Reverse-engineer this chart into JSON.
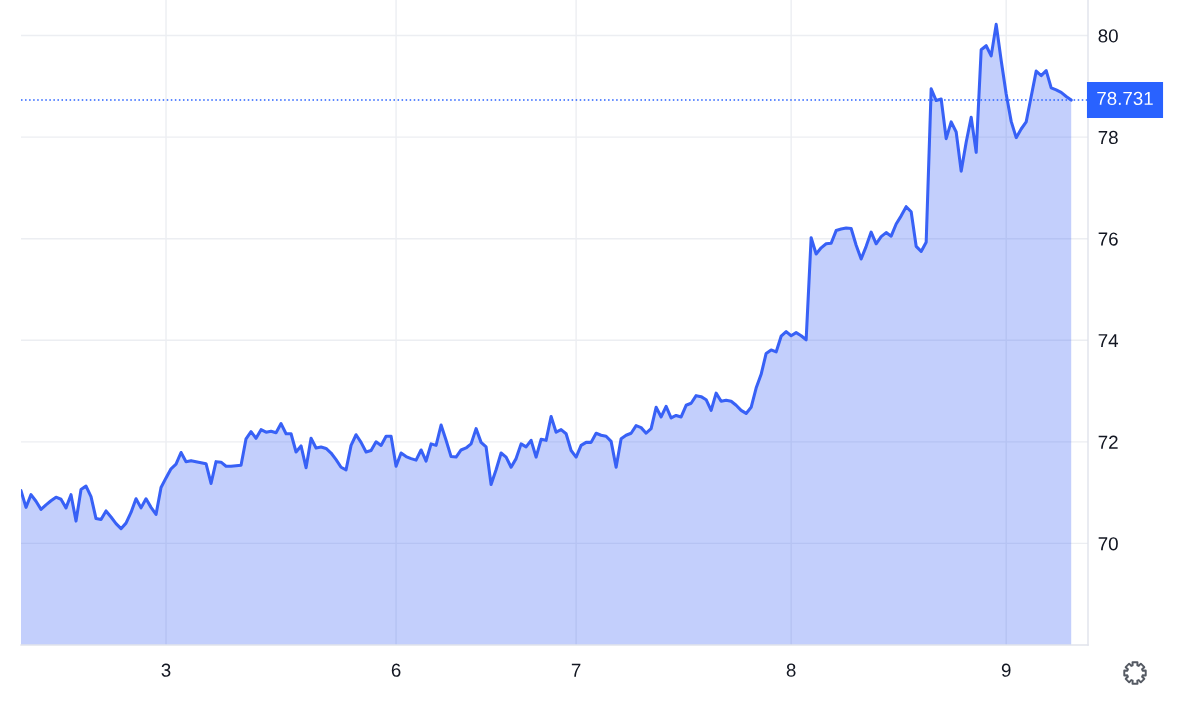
{
  "chart_data": {
    "type": "area",
    "categories": [
      null,
      null,
      null,
      null,
      null,
      null,
      null,
      null,
      null,
      null,
      null,
      null,
      null,
      null,
      null,
      null,
      null,
      null,
      null,
      null,
      null,
      null,
      null,
      null,
      null,
      null,
      null,
      null,
      null,
      "3",
      null,
      null,
      null,
      null,
      null,
      null,
      null,
      null,
      null,
      null,
      null,
      null,
      null,
      null,
      null,
      null,
      null,
      null,
      null,
      null,
      null,
      null,
      null,
      null,
      null,
      null,
      null,
      null,
      null,
      null,
      null,
      null,
      null,
      null,
      null,
      null,
      null,
      null,
      null,
      null,
      null,
      null,
      null,
      null,
      null,
      "6",
      null,
      null,
      null,
      null,
      null,
      null,
      null,
      null,
      null,
      null,
      null,
      null,
      null,
      null,
      null,
      null,
      null,
      null,
      null,
      null,
      null,
      null,
      null,
      null,
      null,
      null,
      null,
      null,
      null,
      null,
      null,
      null,
      null,
      null,
      null,
      "7",
      null,
      null,
      null,
      null,
      null,
      null,
      null,
      null,
      null,
      null,
      null,
      null,
      null,
      null,
      null,
      null,
      null,
      null,
      null,
      null,
      null,
      null,
      null,
      null,
      null,
      null,
      null,
      null,
      null,
      null,
      null,
      null,
      null,
      null,
      null,
      null,
      null,
      null,
      null,
      null,
      null,
      null,
      "8",
      null,
      null,
      null,
      null,
      null,
      null,
      null,
      null,
      null,
      null,
      null,
      null,
      null,
      null,
      null,
      null,
      null,
      null,
      null,
      null,
      null,
      null,
      null,
      null,
      null,
      null,
      null,
      null,
      null,
      null,
      null,
      null,
      null,
      null,
      null,
      null,
      null,
      null,
      null,
      null,
      null,
      null,
      "9",
      null,
      null,
      null,
      null,
      null,
      null,
      null,
      null,
      null,
      null,
      null,
      null,
      null
    ],
    "series": [
      {
        "color": "#3861f6",
        "values": [
          71.04,
          70.71,
          70.96,
          70.83,
          70.67,
          70.76,
          70.84,
          70.91,
          70.87,
          70.7,
          70.96,
          70.44,
          71.06,
          71.13,
          70.92,
          70.49,
          70.47,
          70.64,
          70.52,
          70.39,
          70.29,
          70.4,
          70.61,
          70.88,
          70.7,
          70.88,
          70.71,
          70.57,
          71.1,
          71.29,
          71.47,
          71.56,
          71.79,
          71.61,
          71.63,
          71.61,
          71.59,
          71.57,
          71.18,
          71.61,
          71.6,
          71.52,
          71.52,
          71.53,
          71.54,
          72.06,
          72.2,
          72.07,
          72.24,
          72.19,
          72.21,
          72.18,
          72.36,
          72.16,
          72.16,
          71.8,
          71.92,
          71.49,
          72.07,
          71.88,
          71.9,
          71.87,
          71.78,
          71.65,
          71.5,
          71.45,
          71.93,
          72.14,
          71.99,
          71.8,
          71.83,
          72.0,
          71.93,
          72.11,
          72.11,
          71.52,
          71.78,
          71.71,
          71.67,
          71.64,
          71.84,
          71.62,
          71.96,
          71.93,
          72.33,
          72.03,
          71.71,
          71.7,
          71.84,
          71.88,
          71.96,
          72.26,
          71.99,
          71.9,
          71.16,
          71.45,
          71.78,
          71.7,
          71.5,
          71.67,
          71.96,
          71.9,
          72.03,
          71.7,
          72.05,
          72.03,
          72.5,
          72.19,
          72.24,
          72.16,
          71.83,
          71.7,
          71.93,
          71.99,
          71.99,
          72.17,
          72.13,
          72.11,
          72.01,
          71.5,
          72.06,
          72.13,
          72.17,
          72.32,
          72.28,
          72.17,
          72.26,
          72.68,
          72.49,
          72.7,
          72.47,
          72.52,
          72.49,
          72.72,
          72.76,
          72.91,
          72.89,
          72.83,
          72.62,
          72.96,
          72.8,
          72.82,
          72.8,
          72.72,
          72.62,
          72.56,
          72.68,
          73.06,
          73.33,
          73.74,
          73.81,
          73.77,
          74.08,
          74.17,
          74.09,
          74.15,
          74.09,
          74.01,
          76.02,
          75.7,
          75.82,
          75.9,
          75.91,
          76.16,
          76.19,
          76.21,
          76.2,
          75.87,
          75.6,
          75.85,
          76.13,
          75.9,
          76.04,
          76.12,
          76.05,
          76.29,
          76.45,
          76.63,
          76.53,
          75.85,
          75.75,
          75.93,
          78.95,
          78.72,
          78.75,
          77.97,
          78.3,
          78.1,
          77.33,
          77.9,
          78.39,
          77.7,
          79.72,
          79.8,
          79.6,
          80.22,
          79.51,
          78.85,
          78.31,
          77.99,
          78.16,
          78.3,
          78.8,
          79.3,
          79.21,
          79.31,
          78.97,
          78.93,
          78.88,
          78.8,
          78.73
        ]
      }
    ],
    "ylim": [
      68,
      80.7
    ],
    "yticks": [
      70,
      72,
      74,
      76,
      78,
      80
    ],
    "grid": true,
    "ref_lines": [
      {
        "axis": "y",
        "value": 78.731,
        "label": "78.731",
        "color": "#2962ff",
        "line_style": "dotted"
      }
    ]
  }
}
